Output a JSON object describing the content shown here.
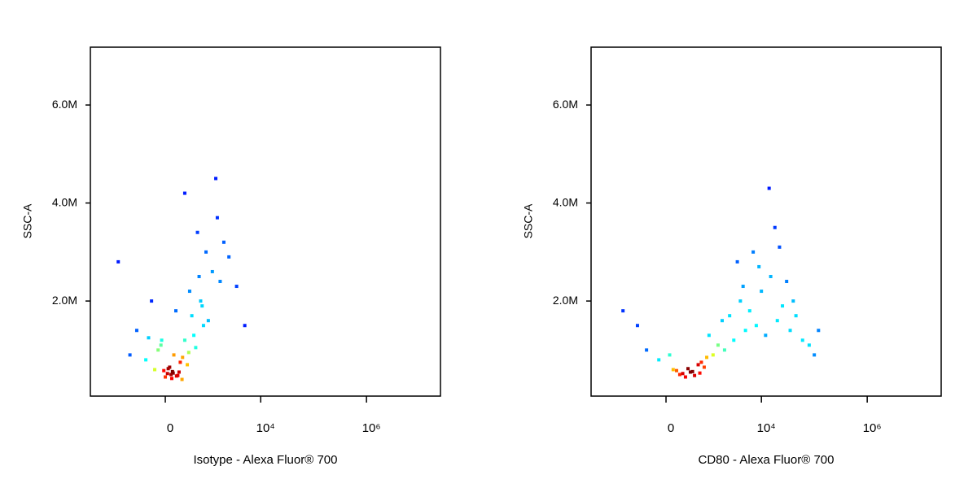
{
  "chart_data": [
    {
      "type": "scatter",
      "xlabel": "Isotype - Alexa Fluor® 700",
      "ylabel": "SSC-A",
      "xscale": "biexponential",
      "xlim": [
        -4100,
        25000000
      ],
      "ylim": [
        60000,
        7180000
      ],
      "xticks": [
        0,
        {
          "value": 10000,
          "label": "10⁴"
        },
        {
          "value": 1000000,
          "label": "10⁶"
        }
      ],
      "yticks": [
        {
          "value": 2000000,
          "label": "2.0M"
        },
        {
          "value": 4000000,
          "label": "4.0M"
        },
        {
          "value": 6000000,
          "label": "6.0M"
        }
      ],
      "x": [
        0,
        80,
        -150,
        200,
        350,
        120,
        -60,
        500,
        800,
        250,
        -300,
        150,
        400,
        60,
        -100,
        300,
        700,
        1200,
        -500,
        900,
        180,
        30,
        450,
        1700,
        -700,
        600,
        220,
        -200,
        90,
        1000,
        2500,
        3500,
        5000,
        -1200,
        1500,
        300,
        -50,
        650,
        2000,
        100,
        40,
        160,
        260,
        -20,
        380,
        550,
        110,
        -250,
        750,
        1400
      ],
      "y": [
        450000,
        500000,
        600000,
        550000,
        700000,
        900000,
        1100000,
        1300000,
        1500000,
        400000,
        800000,
        1800000,
        2200000,
        650000,
        1000000,
        1200000,
        2000000,
        2600000,
        1400000,
        3000000,
        480000,
        520000,
        1700000,
        2400000,
        900000,
        3400000,
        750000,
        2000000,
        420000,
        1600000,
        2900000,
        2300000,
        1500000,
        2800000,
        3700000,
        4200000,
        1200000,
        2500000,
        3200000,
        560000,
        620000,
        470000,
        850000,
        580000,
        950000,
        1050000,
        530000,
        1250000,
        1900000,
        4500000
      ]
    },
    {
      "type": "scatter",
      "xlabel": "CD80 - Alexa Fluor® 700",
      "ylabel": "SSC-A",
      "xscale": "biexponential",
      "xlim": [
        -4100,
        25000000
      ],
      "ylim": [
        60000,
        7180000
      ],
      "xticks": [
        0,
        {
          "value": 10000,
          "label": "10⁴"
        },
        {
          "value": 1000000,
          "label": "10⁶"
        }
      ],
      "yticks": [
        {
          "value": 2000000,
          "label": "2.0M"
        },
        {
          "value": 4000000,
          "label": "4.0M"
        },
        {
          "value": 6000000,
          "label": "6.0M"
        }
      ],
      "x": [
        200,
        300,
        100,
        400,
        600,
        -100,
        800,
        1200,
        2000,
        3000,
        5000,
        8000,
        12000,
        20000,
        35000,
        60000,
        100000,
        250,
        500,
        -300,
        1500,
        2500,
        4000,
        6000,
        10000,
        15000,
        25000,
        45000,
        150,
        350,
        -500,
        700,
        1000,
        3500,
        7000,
        18000,
        30000,
        80000,
        -1000,
        50,
        450,
        900,
        1800,
        4500,
        9000,
        14000,
        22000,
        40000,
        120000,
        650
      ],
      "y": [
        500000,
        450000,
        600000,
        550000,
        700000,
        800000,
        650000,
        900000,
        1000000,
        1200000,
        1400000,
        1500000,
        1300000,
        1600000,
        1400000,
        1200000,
        900000,
        520000,
        480000,
        1000000,
        1100000,
        1700000,
        2000000,
        1800000,
        2200000,
        2500000,
        1900000,
        1700000,
        580000,
        620000,
        1500000,
        750000,
        1300000,
        2800000,
        3000000,
        3500000,
        2400000,
        1100000,
        1800000,
        900000,
        560000,
        850000,
        1600000,
        2300000,
        2700000,
        4300000,
        3100000,
        2000000,
        1400000,
        530000
      ]
    }
  ]
}
